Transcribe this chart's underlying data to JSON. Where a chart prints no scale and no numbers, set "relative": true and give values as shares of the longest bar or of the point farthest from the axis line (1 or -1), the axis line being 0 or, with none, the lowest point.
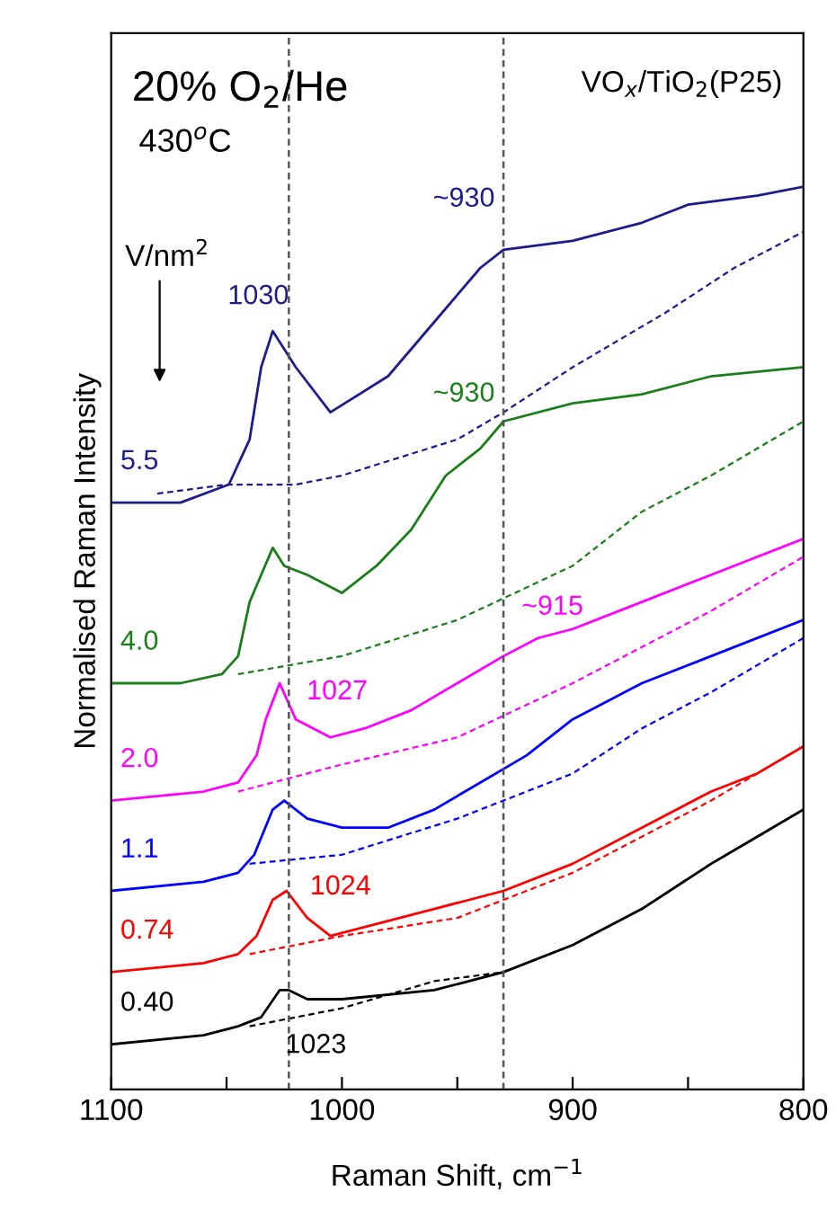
{
  "chart_data": {
    "type": "line",
    "relative": true,
    "xlabel": "Raman Shift, cm$^{−1}$",
    "ylabel": "Normalised Raman Intensity",
    "xlim": [
      1100,
      800
    ],
    "xticks": [
      1100,
      {
        "value": 1050,
        "label": null
      },
      1000,
      {
        "value": 950,
        "label": null
      },
      900,
      {
        "value": 850,
        "label": null
      },
      800
    ],
    "series": [
      {
        "name": "5.5",
        "color": "#1c1c8c",
        "x": [
          1100,
          1070,
          1049,
          1040,
          1035,
          1030,
          1020,
          1005,
          980,
          960,
          940,
          930,
          900,
          870,
          850,
          820,
          800
        ],
        "values": [
          0.65,
          0.65,
          0.67,
          0.72,
          0.8,
          0.84,
          0.8,
          0.75,
          0.79,
          0.85,
          0.91,
          0.93,
          0.94,
          0.96,
          0.98,
          0.99,
          1.0
        ]
      },
      {
        "color": "#1c1c8c",
        "line_style": "dashed",
        "x": [
          1080,
          1050,
          1020,
          1000,
          950,
          930,
          900,
          860,
          830,
          800
        ],
        "values": [
          0.66,
          0.67,
          0.67,
          0.68,
          0.72,
          0.75,
          0.8,
          0.86,
          0.91,
          0.95
        ]
      },
      {
        "name": "4.0",
        "color": "#1a7f1a",
        "x": [
          1100,
          1070,
          1052,
          1045,
          1040,
          1035,
          1030,
          1025,
          1015,
          1000,
          985,
          970,
          955,
          940,
          930,
          900,
          870,
          840,
          800
        ],
        "values": [
          0.45,
          0.45,
          0.46,
          0.48,
          0.54,
          0.57,
          0.6,
          0.58,
          0.57,
          0.55,
          0.58,
          0.62,
          0.68,
          0.71,
          0.74,
          0.76,
          0.77,
          0.79,
          0.8
        ]
      },
      {
        "color": "#1a7f1a",
        "line_style": "dashed",
        "x": [
          1045,
          1000,
          950,
          900,
          870,
          840,
          800
        ],
        "values": [
          0.46,
          0.48,
          0.52,
          0.58,
          0.64,
          0.68,
          0.74
        ]
      },
      {
        "name": "2.0",
        "color": "#ff00ff",
        "x": [
          1100,
          1060,
          1045,
          1037,
          1033,
          1027,
          1020,
          1005,
          990,
          970,
          950,
          930,
          915,
          900,
          870,
          840,
          800
        ],
        "values": [
          0.32,
          0.33,
          0.34,
          0.37,
          0.41,
          0.45,
          0.41,
          0.39,
          0.4,
          0.42,
          0.45,
          0.48,
          0.5,
          0.51,
          0.54,
          0.57,
          0.61
        ]
      },
      {
        "color": "#ff00ff",
        "line_style": "dashed",
        "x": [
          1045,
          1000,
          950,
          900,
          870,
          840,
          800
        ],
        "values": [
          0.33,
          0.36,
          0.39,
          0.45,
          0.49,
          0.53,
          0.59
        ]
      },
      {
        "name": "1.1",
        "color": "#0000ff",
        "x": [
          1100,
          1060,
          1045,
          1038,
          1030,
          1025,
          1015,
          1000,
          980,
          960,
          940,
          920,
          900,
          870,
          840,
          800
        ],
        "values": [
          0.22,
          0.23,
          0.24,
          0.26,
          0.31,
          0.32,
          0.3,
          0.29,
          0.29,
          0.31,
          0.34,
          0.37,
          0.41,
          0.45,
          0.48,
          0.52
        ]
      },
      {
        "color": "#0000ff",
        "line_style": "dashed",
        "x": [
          1040,
          1000,
          950,
          920,
          900,
          870,
          840,
          800
        ],
        "values": [
          0.25,
          0.26,
          0.3,
          0.33,
          0.35,
          0.4,
          0.44,
          0.5
        ]
      },
      {
        "name": "0.74",
        "color": "#ff0000",
        "x": [
          1100,
          1060,
          1045,
          1037,
          1030,
          1024,
          1015,
          1005,
          990,
          960,
          930,
          900,
          870,
          840,
          820,
          800
        ],
        "values": [
          0.13,
          0.14,
          0.15,
          0.17,
          0.21,
          0.22,
          0.19,
          0.17,
          0.18,
          0.2,
          0.22,
          0.25,
          0.29,
          0.33,
          0.35,
          0.38
        ]
      },
      {
        "color": "#ff0000",
        "line_style": "dashed",
        "x": [
          1040,
          1000,
          950,
          900,
          870,
          840,
          800
        ],
        "values": [
          0.15,
          0.17,
          0.19,
          0.24,
          0.28,
          0.32,
          0.38
        ]
      },
      {
        "name": "0.40",
        "color": "#000000",
        "x": [
          1100,
          1060,
          1045,
          1035,
          1027,
          1023,
          1015,
          1000,
          960,
          930,
          900,
          870,
          840,
          820,
          800
        ],
        "values": [
          0.05,
          0.06,
          0.07,
          0.08,
          0.11,
          0.11,
          0.1,
          0.1,
          0.11,
          0.13,
          0.16,
          0.2,
          0.25,
          0.28,
          0.31
        ]
      },
      {
        "color": "#000000",
        "line_style": "dashed",
        "x": [
          1040,
          1000,
          960,
          930,
          900,
          870,
          840,
          800
        ],
        "values": [
          0.07,
          0.09,
          0.12,
          0.13,
          0.16,
          0.2,
          0.25,
          0.31
        ]
      }
    ],
    "ref_lines": [
      {
        "axis": "x",
        "value": 1023,
        "color": "#555555",
        "line_style": "dashed"
      },
      {
        "axis": "x",
        "value": 930,
        "color": "#555555",
        "line_style": "dashed"
      }
    ],
    "annotations": [
      "20% O$_{2}$/He",
      "430$^{o}$C",
      "VO$_{x}$/TiO$_{2}$(P25)",
      "V/nm$^{2}$",
      {
        "text": "1030",
        "x": 1030,
        "y": 0.84
      },
      {
        "text": "~930",
        "x": 930,
        "y": 0.93
      },
      {
        "text": "~930",
        "x": 930,
        "y": 0.74
      },
      {
        "text": "~915",
        "x": 915,
        "y": 0.5
      },
      {
        "text": "1027",
        "x": 1027,
        "y": 0.45
      },
      {
        "text": "1024",
        "x": 1024,
        "y": 0.22
      },
      {
        "text": "1023",
        "x": 1023,
        "y": 0.11
      }
    ]
  }
}
